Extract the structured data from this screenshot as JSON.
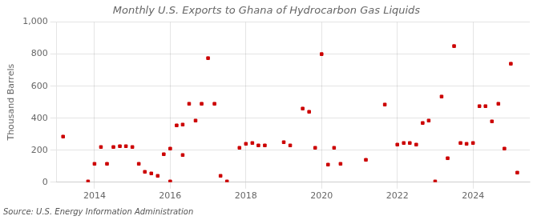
{
  "chart_data": {
    "type": "scatter",
    "title": "Monthly U.S. Exports to Ghana of Hydrocarbon Gas Liquids",
    "y_label": "Thousand Barrels",
    "annotations": [
      "Source: U.S. Energy Information Administration"
    ],
    "x": [
      2013.17,
      2013.83,
      2014.0,
      2014.17,
      2014.33,
      2014.5,
      2014.67,
      2014.83,
      2015.0,
      2015.17,
      2015.33,
      2015.5,
      2015.67,
      2015.83,
      2016.0,
      2016.0,
      2016.17,
      2016.33,
      2016.33,
      2016.5,
      2016.67,
      2016.83,
      2017.0,
      2017.17,
      2017.33,
      2017.5,
      2017.83,
      2018.0,
      2018.17,
      2018.33,
      2018.5,
      2019.0,
      2019.17,
      2019.5,
      2019.67,
      2019.83,
      2020.0,
      2020.17,
      2020.33,
      2020.5,
      2021.17,
      2021.67,
      2022.0,
      2022.17,
      2022.33,
      2022.5,
      2022.67,
      2022.83,
      2023.0,
      2023.17,
      2023.33,
      2023.5,
      2023.67,
      2023.83,
      2024.0,
      2024.17,
      2024.33,
      2024.5,
      2024.67,
      2024.83,
      2025.0,
      2025.17
    ],
    "values": [
      285,
      5,
      115,
      220,
      115,
      220,
      225,
      225,
      220,
      115,
      65,
      55,
      40,
      175,
      5,
      210,
      355,
      170,
      360,
      490,
      385,
      490,
      775,
      490,
      40,
      5,
      215,
      240,
      245,
      230,
      230,
      250,
      230,
      460,
      440,
      215,
      800,
      110,
      215,
      115,
      140,
      485,
      235,
      245,
      245,
      235,
      370,
      385,
      5,
      535,
      150,
      850,
      245,
      240,
      245,
      475,
      475,
      380,
      490,
      210,
      740,
      60
    ],
    "color": "#cc0000",
    "marker": "square",
    "xlim": [
      2013.0,
      2025.5
    ],
    "xticks": [
      2014,
      2016,
      2018,
      2020,
      2022,
      2024
    ],
    "ylim": [
      0,
      1000
    ],
    "yticks": [
      0,
      200,
      400,
      600,
      800,
      {
        "value": 1000,
        "label": "1,000"
      }
    ],
    "grid": true
  }
}
